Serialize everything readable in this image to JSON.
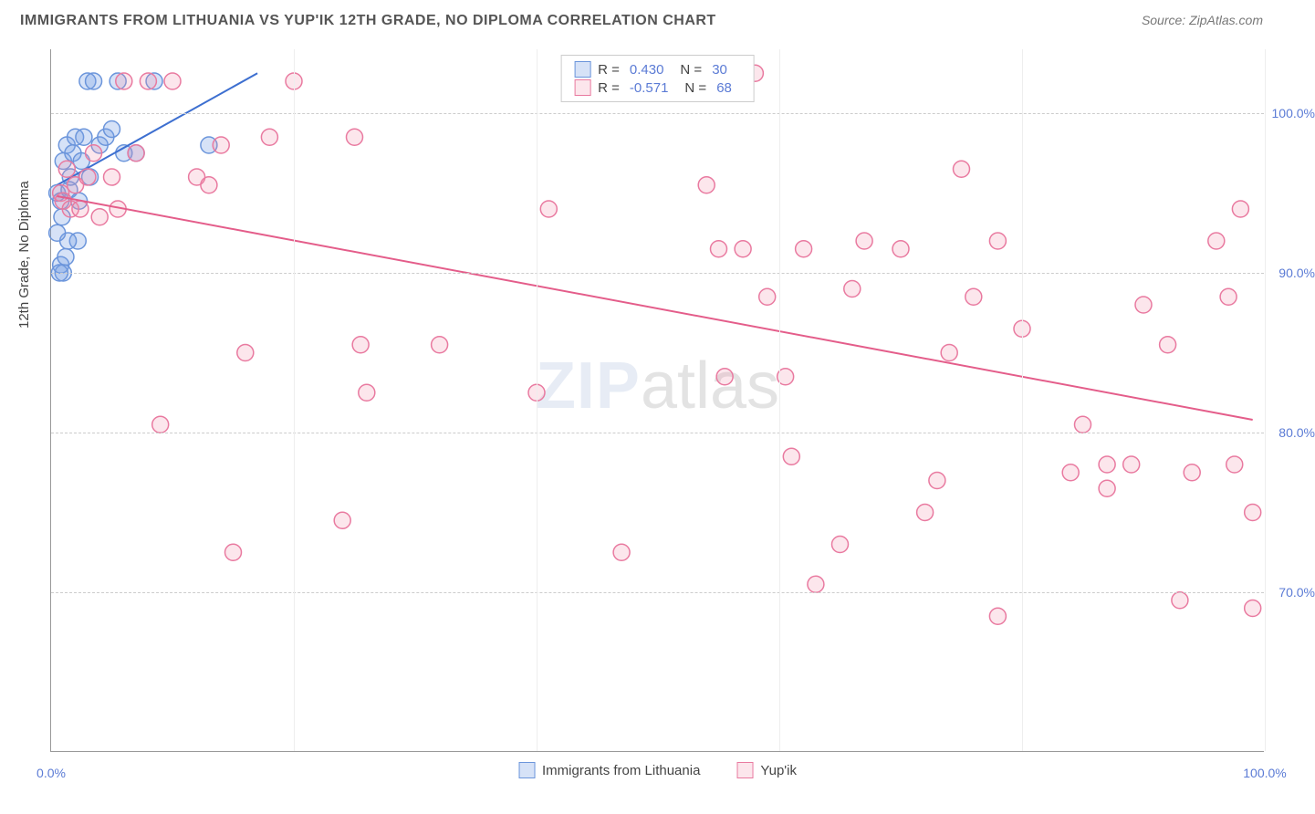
{
  "title": "IMMIGRANTS FROM LITHUANIA VS YUP'IK 12TH GRADE, NO DIPLOMA CORRELATION CHART",
  "source": "Source: ZipAtlas.com",
  "ylabel": "12th Grade, No Diploma",
  "watermark_zip": "ZIP",
  "watermark_atlas": "atlas",
  "chart": {
    "type": "scatter",
    "xlim": [
      0,
      100
    ],
    "ylim": [
      60,
      104
    ],
    "xticks": [
      0,
      100
    ],
    "xtick_labels": [
      "0.0%",
      "100.0%"
    ],
    "xgrid": [
      20,
      40,
      60,
      80,
      100
    ],
    "yticks": [
      70,
      80,
      90,
      100
    ],
    "ytick_labels": [
      "70.0%",
      "80.0%",
      "90.0%",
      "100.0%"
    ],
    "background_color": "#ffffff",
    "grid_color": "#cccccc",
    "marker_radius": 9,
    "marker_stroke_width": 1.5,
    "line_width": 2,
    "series": [
      {
        "key": "lithuania",
        "label": "Immigrants from Lithuania",
        "fill": "rgba(120,160,230,0.30)",
        "stroke": "#6b95db",
        "line_color": "#3d6fd0",
        "R": "0.430",
        "N": "30",
        "trend": {
          "x1": 0.5,
          "y1": 95.5,
          "x2": 17,
          "y2": 102.5
        },
        "points": [
          [
            0.5,
            95.0
          ],
          [
            0.8,
            94.5
          ],
          [
            1.0,
            97.0
          ],
          [
            1.3,
            98.0
          ],
          [
            1.5,
            95.2
          ],
          [
            1.8,
            97.5
          ],
          [
            2.0,
            98.5
          ],
          [
            2.2,
            92.0
          ],
          [
            2.5,
            97.0
          ],
          [
            3.0,
            102.0
          ],
          [
            3.5,
            102.0
          ],
          [
            4.0,
            98.0
          ],
          [
            4.5,
            98.5
          ],
          [
            5.0,
            99.0
          ],
          [
            5.5,
            102.0
          ],
          [
            6.0,
            97.5
          ],
          [
            7.0,
            97.5
          ],
          [
            8.5,
            102.0
          ],
          [
            0.8,
            90.5
          ],
          [
            1.0,
            90.0
          ],
          [
            1.2,
            91.0
          ],
          [
            1.4,
            92.0
          ],
          [
            0.5,
            92.5
          ],
          [
            0.7,
            90.0
          ],
          [
            2.7,
            98.5
          ],
          [
            3.2,
            96.0
          ],
          [
            1.6,
            96.0
          ],
          [
            2.3,
            94.5
          ],
          [
            0.9,
            93.5
          ],
          [
            13,
            98.0
          ]
        ]
      },
      {
        "key": "yupik",
        "label": "Yup'ik",
        "fill": "rgba(240,140,170,0.22)",
        "stroke": "#e97aa0",
        "line_color": "#e45d8a",
        "R": "-0.571",
        "N": "68",
        "trend": {
          "x1": 0.5,
          "y1": 94.8,
          "x2": 99,
          "y2": 80.8
        },
        "points": [
          [
            0.8,
            95.0
          ],
          [
            1.0,
            94.5
          ],
          [
            1.3,
            96.5
          ],
          [
            1.6,
            94.0
          ],
          [
            2.0,
            95.5
          ],
          [
            2.4,
            94.0
          ],
          [
            3.0,
            96.0
          ],
          [
            3.5,
            97.5
          ],
          [
            4.0,
            93.5
          ],
          [
            5.0,
            96.0
          ],
          [
            5.5,
            94.0
          ],
          [
            6.0,
            102.0
          ],
          [
            7.0,
            97.5
          ],
          [
            8.0,
            102.0
          ],
          [
            9.0,
            80.5
          ],
          [
            10,
            102.0
          ],
          [
            12,
            96.0
          ],
          [
            13,
            95.5
          ],
          [
            14,
            98.0
          ],
          [
            15,
            72.5
          ],
          [
            16,
            85.0
          ],
          [
            18,
            98.5
          ],
          [
            20,
            102.0
          ],
          [
            24,
            74.5
          ],
          [
            25,
            98.5
          ],
          [
            25.5,
            85.5
          ],
          [
            26,
            82.5
          ],
          [
            32,
            85.5
          ],
          [
            40,
            82.5
          ],
          [
            41,
            94.0
          ],
          [
            47,
            72.5
          ],
          [
            54,
            95.5
          ],
          [
            55,
            91.5
          ],
          [
            55.5,
            83.5
          ],
          [
            57,
            91.5
          ],
          [
            58,
            102.5
          ],
          [
            59,
            88.5
          ],
          [
            60.5,
            83.5
          ],
          [
            61,
            78.5
          ],
          [
            62,
            91.5
          ],
          [
            63,
            70.5
          ],
          [
            65,
            73.0
          ],
          [
            66,
            89.0
          ],
          [
            67,
            92.0
          ],
          [
            70,
            91.5
          ],
          [
            72,
            75.0
          ],
          [
            73,
            77.0
          ],
          [
            74,
            85.0
          ],
          [
            75,
            96.5
          ],
          [
            76,
            88.5
          ],
          [
            78,
            92.0
          ],
          [
            78,
            68.5
          ],
          [
            80,
            86.5
          ],
          [
            84,
            77.5
          ],
          [
            85,
            80.5
          ],
          [
            87,
            76.5
          ],
          [
            87,
            78.0
          ],
          [
            89,
            78.0
          ],
          [
            90,
            88.0
          ],
          [
            92,
            85.5
          ],
          [
            93,
            69.5
          ],
          [
            94,
            77.5
          ],
          [
            96,
            92.0
          ],
          [
            97,
            88.5
          ],
          [
            97.5,
            78.0
          ],
          [
            98,
            94.0
          ],
          [
            99,
            69.0
          ],
          [
            99,
            75.0
          ]
        ]
      }
    ]
  },
  "bottom_legend": [
    {
      "label": "Immigrants from Lithuania",
      "fill": "rgba(120,160,230,0.30)",
      "stroke": "#6b95db"
    },
    {
      "label": "Yup'ik",
      "fill": "rgba(240,140,170,0.22)",
      "stroke": "#e97aa0"
    }
  ]
}
